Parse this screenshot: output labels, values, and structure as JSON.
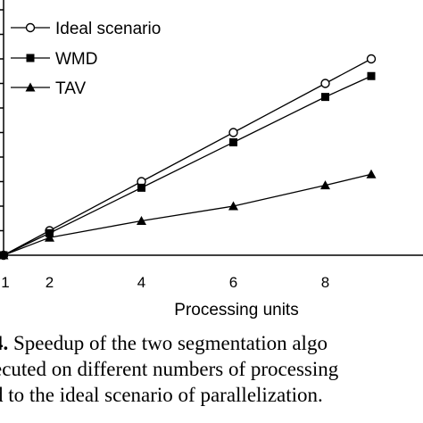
{
  "chart_data": {
    "type": "line",
    "xlabel": "Processing units",
    "ylabel": "",
    "x_ticks": [
      "1",
      "2",
      "4",
      "6",
      "8"
    ],
    "grid": false,
    "legend_position": "top-left",
    "series": [
      {
        "name": "Ideal scenario",
        "marker": "open-circle",
        "color": "#000000",
        "points": [
          [
            1,
            1
          ],
          [
            2,
            2
          ],
          [
            4,
            4
          ],
          [
            6,
            6
          ],
          [
            8,
            8
          ],
          [
            9,
            9
          ]
        ]
      },
      {
        "name": "WMD",
        "marker": "filled-square",
        "color": "#000000",
        "points": [
          [
            1,
            1
          ],
          [
            2,
            1.9
          ],
          [
            4,
            3.75
          ],
          [
            6,
            5.6
          ],
          [
            8,
            7.45
          ],
          [
            9,
            8.3
          ]
        ]
      },
      {
        "name": "TAV",
        "marker": "filled-triangle",
        "color": "#000000",
        "points": [
          [
            1,
            1
          ],
          [
            2,
            1.72
          ],
          [
            4,
            2.4
          ],
          [
            6,
            3.0
          ],
          [
            8,
            3.85
          ],
          [
            9,
            4.3
          ]
        ]
      }
    ]
  },
  "caption": {
    "line1_bold": "4.",
    "line1_rest": " Speedup of the two segmentation algo",
    "line2": "ecuted on different numbers of processing",
    "line3": "d to the ideal scenario of parallelization."
  }
}
